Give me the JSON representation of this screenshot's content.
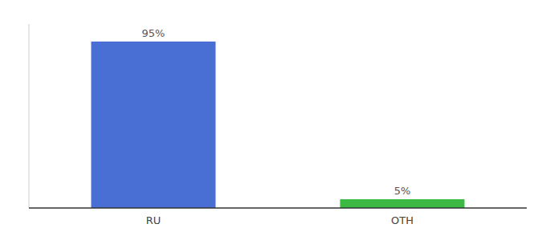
{
  "chart_data": {
    "type": "bar",
    "categories": [
      "RU",
      "OTH"
    ],
    "values": [
      95,
      5
    ],
    "colors": [
      "#4a6fd4",
      "#3cb943"
    ],
    "ylim": [
      0,
      105
    ],
    "data_labels": true,
    "value_labels": [
      "95%",
      "5%"
    ],
    "tick_labels": "x",
    "grid": false
  }
}
